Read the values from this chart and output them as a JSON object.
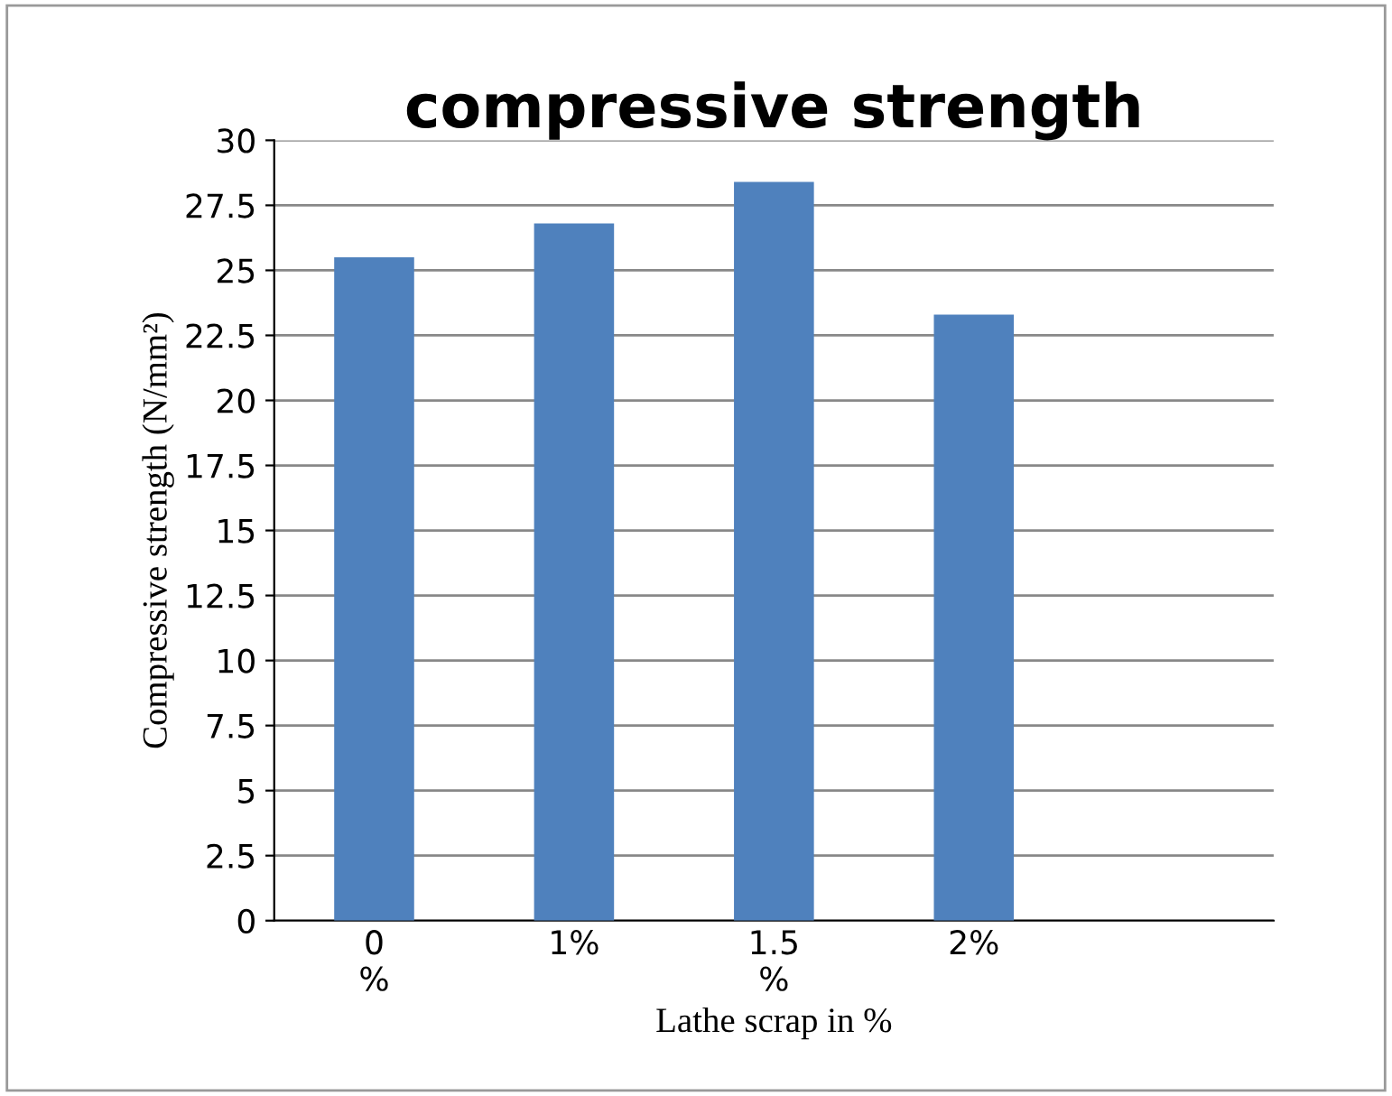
{
  "chart_data": {
    "type": "bar",
    "title": "compressive strength",
    "xlabel": "Lathe scrap in %",
    "ylabel": "Compressive strength (N/mm²)",
    "categories": [
      "0\n%",
      "1%",
      "1.5\n%",
      "2%",
      null
    ],
    "values": [
      25.5,
      26.8,
      28.4,
      23.3,
      null
    ],
    "color": "#4f81bd",
    "ylim": [
      0,
      30
    ],
    "yticks": [
      0,
      2.5,
      5,
      7.5,
      10,
      12.5,
      15,
      17.5,
      20,
      22.5,
      25,
      27.5,
      30
    ],
    "grid": "y"
  }
}
